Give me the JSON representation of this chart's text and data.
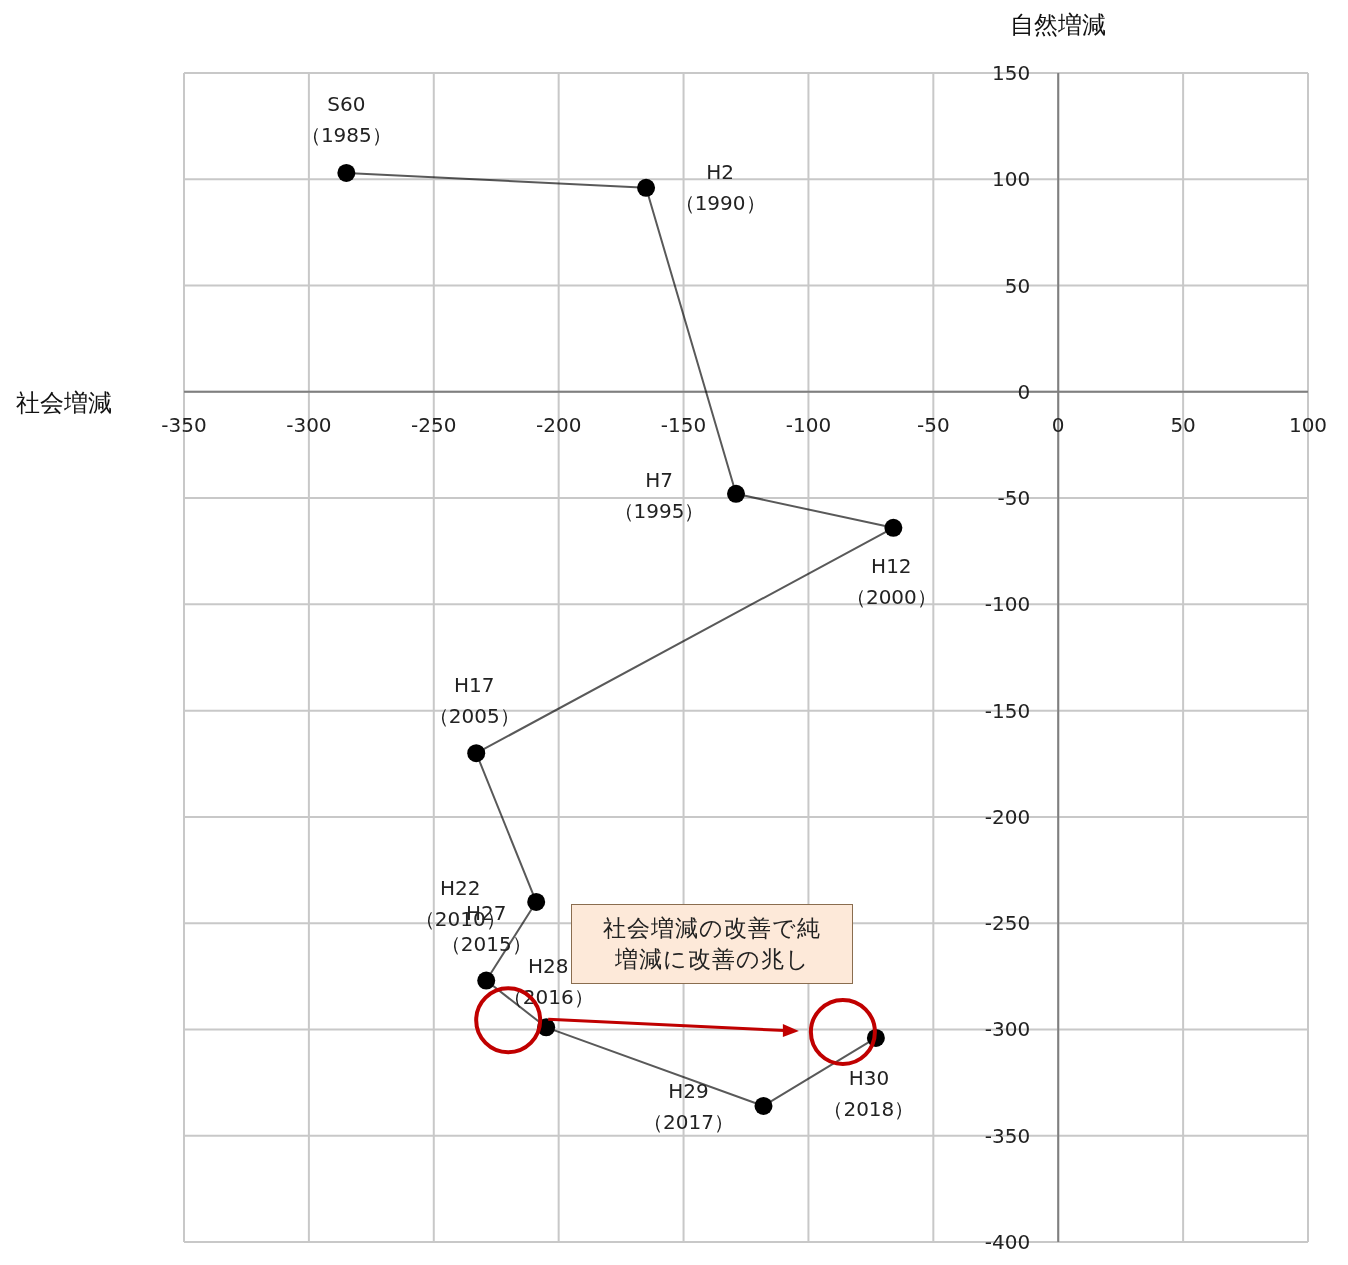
{
  "chart_data": {
    "type": "line",
    "xlabel": "社会増減",
    "ylabel": "自然増減",
    "x": [
      -285,
      -165,
      -129,
      -66,
      -233,
      -209,
      -229,
      -205,
      -118,
      -73
    ],
    "values": [
      103,
      96,
      -48,
      -64,
      -170,
      -240,
      -277,
      -299,
      -336,
      -304
    ],
    "color": "#000000",
    "marker": "circle",
    "grid": true,
    "xlim": [
      -350,
      100
    ],
    "ylim": [
      -400,
      150
    ],
    "xticks": [
      -350,
      -300,
      -250,
      -200,
      -150,
      -100,
      -50,
      0,
      50,
      100
    ],
    "yticks": [
      -400,
      -350,
      -300,
      -250,
      -200,
      -150,
      -100,
      -50,
      0,
      50,
      100,
      150
    ],
    "annotations": [
      {
        "text": "S60\n（1985）",
        "x": -285,
        "y": 103
      },
      {
        "text": "H2\n（1990）",
        "x": -165,
        "y": 96
      },
      {
        "text": "H7\n（1995）",
        "x": -129,
        "y": -48
      },
      {
        "text": "H12\n（2000）",
        "x": -66,
        "y": -64
      },
      {
        "text": "H17\n（2005）",
        "x": -233,
        "y": -170
      },
      {
        "text": "H22\n（2010）",
        "x": -209,
        "y": -240
      },
      {
        "text": "H27\n（2015）",
        "x": -229,
        "y": -277
      },
      {
        "text": "H28\n（2016）",
        "x": -205,
        "y": -299
      },
      {
        "text": "H29\n（2017）",
        "x": -118,
        "y": -336
      },
      {
        "text": "H30\n（2018）",
        "x": -73,
        "y": -304
      },
      "社会増減の改善で純増減に改善の兆し"
    ]
  }
}
